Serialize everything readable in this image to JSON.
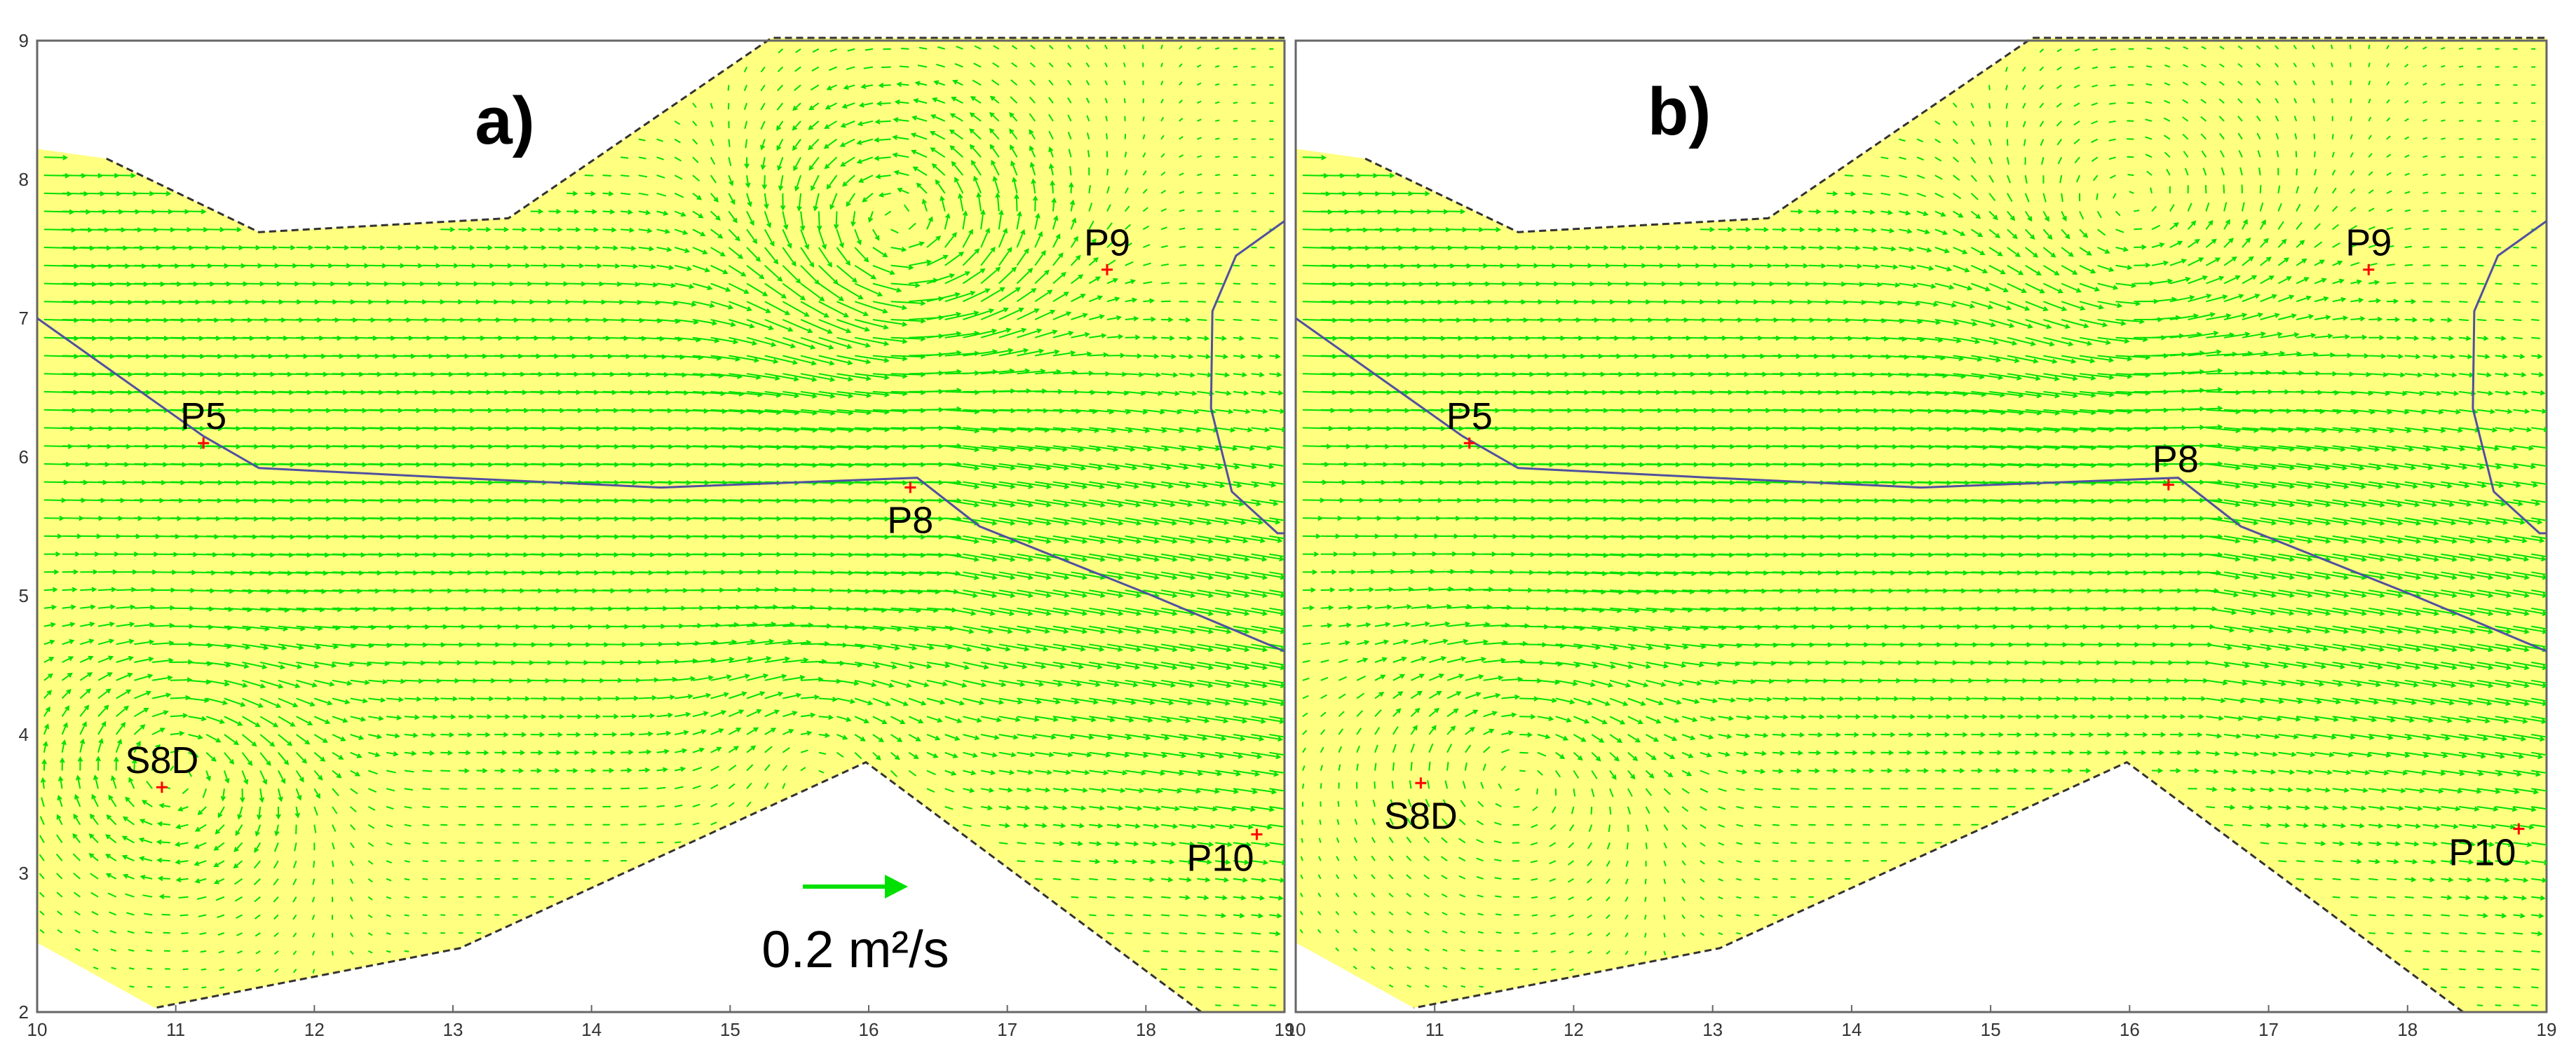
{
  "chart_data": [
    {
      "type": "vector_field",
      "panel_label": "a)",
      "xlim": [
        10,
        19
      ],
      "ylim": [
        2,
        9
      ],
      "xticks": [
        "10",
        "11",
        "12",
        "13",
        "14",
        "15",
        "16",
        "17",
        "18",
        "19"
      ],
      "yticks": [
        "2",
        "3",
        "4",
        "5",
        "6",
        "7",
        "8",
        "9"
      ],
      "domain_fill": "#ffff80",
      "arrow_color": "#00e000",
      "line_color": "#5050a0",
      "marker_color": "#ff0000",
      "points": [
        {
          "label": "P5",
          "x": 11.2,
          "y": 6.1
        },
        {
          "label": "P8",
          "x": 16.3,
          "y": 5.78
        },
        {
          "label": "P9",
          "x": 17.72,
          "y": 7.35
        },
        {
          "label": "P10",
          "x": 18.8,
          "y": 3.28
        },
        {
          "label": "S8D",
          "x": 10.9,
          "y": 3.62
        }
      ],
      "scale_arrow_label": "0.2 m²/s"
    },
    {
      "type": "vector_field",
      "panel_label": "b)",
      "xlim": [
        10,
        19
      ],
      "ylim": [
        2,
        9
      ],
      "xticks": [
        "10",
        "11",
        "12",
        "13",
        "14",
        "15",
        "16",
        "17",
        "18",
        "19"
      ],
      "yticks": [],
      "domain_fill": "#ffff80",
      "arrow_color": "#00e000",
      "line_color": "#5050a0",
      "marker_color": "#ff0000",
      "points": [
        {
          "label": "P5",
          "x": 11.25,
          "y": 6.1
        },
        {
          "label": "P8",
          "x": 16.28,
          "y": 5.8
        },
        {
          "label": "P9",
          "x": 17.72,
          "y": 7.35
        },
        {
          "label": "P10",
          "x": 18.8,
          "y": 3.32
        },
        {
          "label": "S8D",
          "x": 10.9,
          "y": 3.65
        }
      ]
    }
  ]
}
